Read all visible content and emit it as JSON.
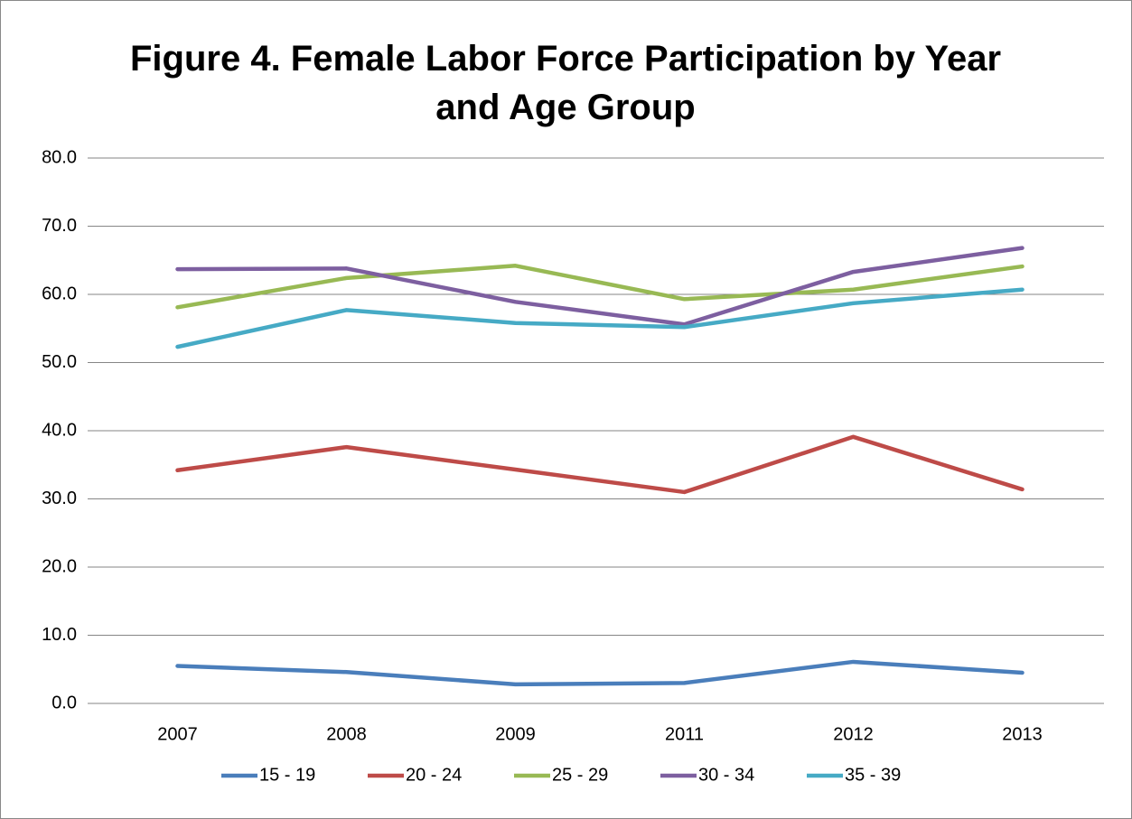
{
  "chart_data": {
    "type": "line",
    "title": "Figure 4. Female Labor Force Participation by Year and Age Group",
    "categories": [
      "2007",
      "2008",
      "2009",
      "2011",
      "2012",
      "2013"
    ],
    "series": [
      {
        "name": "15 - 19",
        "color": "#4a7ebb",
        "values": [
          5.5,
          4.6,
          2.8,
          3.0,
          6.1,
          4.5
        ]
      },
      {
        "name": "20 - 24",
        "color": "#be4b48",
        "values": [
          34.2,
          37.6,
          34.3,
          31.0,
          39.1,
          31.4
        ]
      },
      {
        "name": "25 - 29",
        "color": "#98b954",
        "values": [
          58.1,
          62.4,
          64.2,
          59.3,
          60.7,
          64.1
        ]
      },
      {
        "name": "30 - 34",
        "color": "#7d5fa0",
        "values": [
          63.7,
          63.8,
          58.9,
          55.6,
          63.3,
          66.8
        ]
      },
      {
        "name": "35 - 39",
        "color": "#46aac5",
        "values": [
          52.3,
          57.7,
          55.8,
          55.2,
          58.7,
          60.7
        ]
      }
    ],
    "ylim": [
      0,
      80
    ],
    "yticks": [
      {
        "value": 0,
        "label": "0.0"
      },
      {
        "value": 10,
        "label": "10.0"
      },
      {
        "value": 20,
        "label": "20.0"
      },
      {
        "value": 30,
        "label": "30.0"
      },
      {
        "value": 40,
        "label": "40.0"
      },
      {
        "value": 50,
        "label": "50.0"
      },
      {
        "value": 60,
        "label": "60.0"
      },
      {
        "value": 70,
        "label": "70.0"
      },
      {
        "value": 80,
        "label": "80.0"
      }
    ],
    "grid": true,
    "legend": "bottom"
  }
}
